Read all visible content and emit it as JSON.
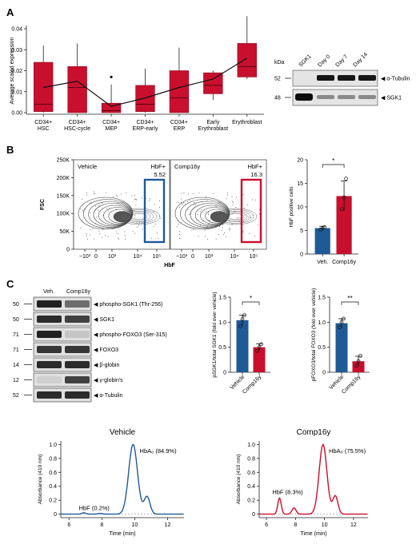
{
  "colors": {
    "red": "#c8102e",
    "red_dark": "#8b0a1e",
    "blue": "#1f5a96",
    "blue_dark": "#123a66"
  },
  "panels": {
    "a": "A",
    "b": "B",
    "c": "C"
  },
  "panelA": {
    "chart_data": {
      "type": "box",
      "ylabel": "Average scaled expression",
      "ylim": [
        0,
        0.04
      ],
      "yticks": [
        "0.00",
        "0.01",
        "0.02",
        "0.03",
        "0.04"
      ],
      "categories": [
        [
          "CD34+",
          "HSC"
        ],
        [
          "CD34+",
          "HSC-cycle"
        ],
        [
          "CD34+",
          "MEP"
        ],
        [
          "CD34+",
          "ERP-early"
        ],
        [
          "CD34+",
          "ERP"
        ],
        [
          "Early",
          "Erythroblast"
        ],
        [
          "Erythroblast",
          ""
        ]
      ],
      "boxes": [
        {
          "q1": 0.0005,
          "median": 0.004,
          "q3": 0.024,
          "lo": 0.0,
          "hi": 0.032
        },
        {
          "q1": 0.0,
          "median": 0.012,
          "q3": 0.022,
          "lo": 0.0,
          "hi": 0.033
        },
        {
          "q1": 0.0,
          "median": 0.001,
          "q3": 0.0045,
          "lo": 0.0,
          "hi": 0.0135,
          "outlier": 0.017
        },
        {
          "q1": 0.0005,
          "median": 0.004,
          "q3": 0.013,
          "lo": 0.0,
          "hi": 0.021
        },
        {
          "q1": 0.0,
          "median": 0.007,
          "q3": 0.02,
          "lo": 0.0,
          "hi": 0.031
        },
        {
          "q1": 0.009,
          "median": 0.013,
          "q3": 0.019,
          "lo": 0.006,
          "hi": 0.02
        },
        {
          "q1": 0.017,
          "median": 0.022,
          "q3": 0.033,
          "lo": 0.016,
          "hi": 0.046
        }
      ],
      "mean_line": [
        0.012,
        0.015,
        0.003,
        0.007,
        0.012,
        0.016,
        0.026
      ]
    }
  },
  "blotA": {
    "kda_label": "kDa",
    "lanes": [
      "SGK1",
      "Day 0",
      "Day 7",
      "Day 14"
    ],
    "rows": [
      {
        "kda": "52",
        "label": "α-Tubulin"
      },
      {
        "kda": "48",
        "label": "SGK1"
      }
    ]
  },
  "panelB": {
    "flow": [
      {
        "title": "Vehicle",
        "gate_label": "HbF+",
        "gate_value": "5.52"
      },
      {
        "title": "Comp16y",
        "gate_label": "HbF+",
        "gate_value": "16.3"
      }
    ],
    "y_axis_label": "FSC",
    "y_ticks": [
      "250K",
      "200K",
      "150K",
      "100K",
      "50K",
      "0"
    ],
    "x_axis_label": "HbF",
    "x_ticks": [
      "−10³",
      "0",
      "10³",
      "10⁴",
      "10⁵"
    ],
    "chart_data": {
      "type": "bar",
      "ylabel": "HbF positive cells",
      "ylim": [
        0,
        20
      ],
      "yticks": [
        "0",
        "5",
        "10",
        "15",
        "20"
      ],
      "categories": [
        "Veh.",
        "Comp16y"
      ],
      "values": [
        5.5,
        12.3
      ],
      "errors": [
        0.4,
        3.2
      ],
      "points": [
        [
          5.2,
          5.5,
          5.7
        ],
        [
          9.5,
          12.0,
          16.0
        ]
      ],
      "significance": "*"
    }
  },
  "blotC": {
    "lanes": [
      "Veh.",
      "Comp16y"
    ],
    "rows": [
      {
        "kda": "50",
        "label": "phospho-SGK1 (Thr-256)"
      },
      {
        "kda": "50",
        "label": "SGK1"
      },
      {
        "kda": "71",
        "label": "phospho-FOXO3 (Ser-315)"
      },
      {
        "kda": "71",
        "label": "FOXO3"
      },
      {
        "kda": "14",
        "label": "β-globin"
      },
      {
        "kda": "12",
        "label": "γ-globin's"
      },
      {
        "kda": "52",
        "label": "α-Tubulin"
      }
    ]
  },
  "barsC": [
    {
      "chart_data": {
        "type": "bar",
        "ylabel": "pSGK1/total SGK1 (fold over vehicle)",
        "ylim": [
          0,
          1.5
        ],
        "yticks": [
          "0",
          "0.5",
          "1.0",
          "1.5"
        ],
        "categories": [
          "Vehicle",
          "Comp16y"
        ],
        "values": [
          1.04,
          0.5
        ],
        "errors": [
          0.1,
          0.07
        ],
        "points": [
          [
            0.92,
            1.06,
            1.14
          ],
          [
            0.43,
            0.5,
            0.56
          ]
        ],
        "significance": "*"
      }
    },
    {
      "chart_data": {
        "type": "bar",
        "ylabel": "pFOXO3/total FOXO3 (fold over vehicle)",
        "ylim": [
          0,
          1.5
        ],
        "yticks": [
          "0",
          "0.5",
          "1.0",
          "1.5"
        ],
        "categories": [
          "Vehicle",
          "Comp16y"
        ],
        "values": [
          0.98,
          0.22
        ],
        "errors": [
          0.09,
          0.1
        ],
        "points": [
          [
            0.9,
            1.0,
            1.07
          ],
          [
            0.13,
            0.22,
            0.33
          ]
        ],
        "significance": "**"
      }
    }
  ],
  "hplc": [
    {
      "title": "Vehicle",
      "ylabel": "Absorbance (410 nm)",
      "xlabel": "Time (min)",
      "xticks": [
        "6",
        "8",
        "10",
        "12"
      ],
      "yticks": [
        "0",
        "0.2",
        "0.4",
        "0.6",
        "0.8",
        "1.0"
      ],
      "hbf_label": "HbF (0.2%)",
      "hba_label": "HbA₀ (84.9%)",
      "chart_data": {
        "type": "line",
        "xlim": [
          5.5,
          13
        ],
        "ylim": [
          -0.05,
          1.05
        ],
        "peaks": [
          [
            6.9,
            0.02,
            0.12
          ],
          [
            7.9,
            0.01,
            0.15
          ],
          [
            9.9,
            1.0,
            0.27
          ],
          [
            10.75,
            0.25,
            0.18
          ]
        ]
      }
    },
    {
      "title": "Comp16y",
      "ylabel": "Absorbance (410 nm)",
      "xlabel": "Time (min)",
      "xticks": [
        "6",
        "8",
        "10",
        "12"
      ],
      "yticks": [
        "0",
        "0.2",
        "0.4",
        "0.6",
        "0.8",
        "1.0"
      ],
      "hbf_label": "HbF (8.3%)",
      "hba_label": "HbA₀ (75.5%)",
      "chart_data": {
        "type": "line",
        "xlim": [
          5.5,
          13
        ],
        "ylim": [
          -0.05,
          1.05
        ],
        "peaks": [
          [
            6.9,
            0.23,
            0.12
          ],
          [
            7.9,
            0.09,
            0.14
          ],
          [
            9.9,
            1.0,
            0.27
          ],
          [
            10.75,
            0.26,
            0.18
          ]
        ]
      }
    }
  ]
}
